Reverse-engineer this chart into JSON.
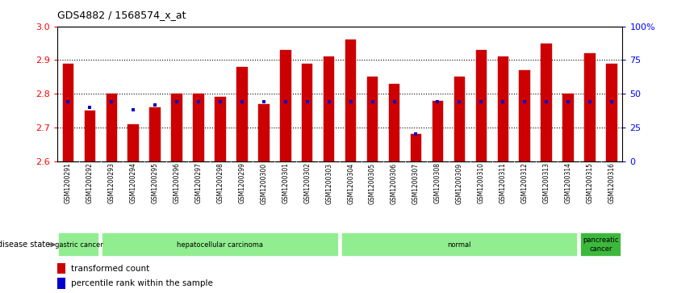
{
  "title": "GDS4882 / 1568574_x_at",
  "samples": [
    "GSM1200291",
    "GSM1200292",
    "GSM1200293",
    "GSM1200294",
    "GSM1200295",
    "GSM1200296",
    "GSM1200297",
    "GSM1200298",
    "GSM1200299",
    "GSM1200300",
    "GSM1200301",
    "GSM1200302",
    "GSM1200303",
    "GSM1200304",
    "GSM1200305",
    "GSM1200306",
    "GSM1200307",
    "GSM1200308",
    "GSM1200309",
    "GSM1200310",
    "GSM1200311",
    "GSM1200312",
    "GSM1200313",
    "GSM1200314",
    "GSM1200315",
    "GSM1200316"
  ],
  "transformed_count": [
    2.89,
    2.75,
    2.8,
    2.71,
    2.76,
    2.8,
    2.8,
    2.79,
    2.88,
    2.77,
    2.93,
    2.89,
    2.91,
    2.96,
    2.85,
    2.83,
    2.68,
    2.78,
    2.85,
    2.93,
    2.91,
    2.87,
    2.95,
    2.8,
    2.92,
    2.89
  ],
  "percentile_rank": [
    44,
    40,
    44,
    38,
    42,
    44,
    44,
    44,
    44,
    44,
    44,
    44,
    44,
    44,
    44,
    44,
    20,
    44,
    44,
    44,
    44,
    44,
    44,
    44,
    44,
    44
  ],
  "disease_groups": [
    {
      "label": "gastric cancer",
      "start": 0,
      "end": 2
    },
    {
      "label": "hepatocellular carcinoma",
      "start": 2,
      "end": 13
    },
    {
      "label": "normal",
      "start": 13,
      "end": 24
    },
    {
      "label": "pancreatic\ncancer",
      "start": 24,
      "end": 26
    }
  ],
  "group_colors": [
    "#90EE90",
    "#90EE90",
    "#90EE90",
    "#3CB93C"
  ],
  "ylim": [
    2.6,
    3.0
  ],
  "yticks_left": [
    2.6,
    2.7,
    2.8,
    2.9,
    3.0
  ],
  "yticks_right": [
    0,
    25,
    50,
    75,
    100
  ],
  "ytick_right_labels": [
    "0",
    "25",
    "50",
    "75",
    "100%"
  ],
  "grid_lines": [
    2.7,
    2.8,
    2.9
  ],
  "bar_color": "#CC0000",
  "percentile_color": "#0000CC",
  "bg_color": "#FFFFFF",
  "xtick_bg": "#C8C8C8",
  "strip_bg": "#C8C8C8",
  "bar_width": 0.5
}
